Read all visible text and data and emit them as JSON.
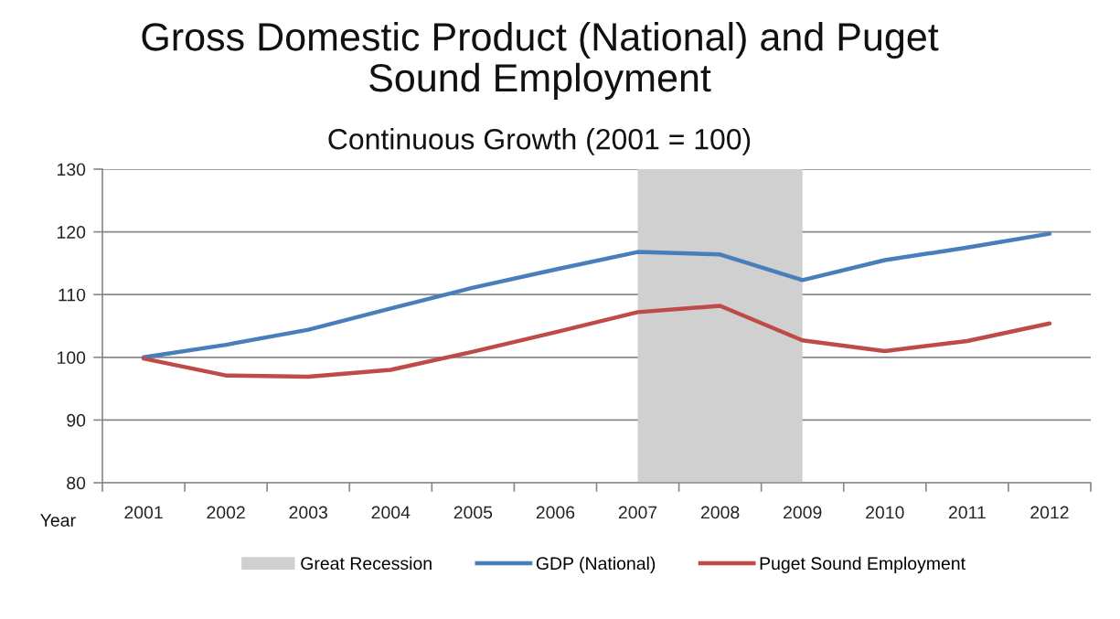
{
  "chart_data": {
    "type": "line",
    "title": "Gross Domestic Product (National) and Puget\nSound Employment",
    "subtitle": "Continuous Growth (2001 = 100)",
    "xlabel": "Year",
    "categories": [
      "2001",
      "2002",
      "2003",
      "2004",
      "2005",
      "2006",
      "2007",
      "2008",
      "2009",
      "2010",
      "2011",
      "2012"
    ],
    "series": [
      {
        "name": "GDP (National)",
        "color": "#4a7ebb",
        "values": [
          100,
          102.0,
          104.4,
          107.8,
          111.1,
          114.0,
          116.8,
          116.4,
          112.3,
          115.5,
          117.5,
          119.7
        ]
      },
      {
        "name": "Puget Sound Employment",
        "color": "#be4b48",
        "values": [
          99.8,
          97.1,
          96.9,
          98.0,
          100.9,
          104.0,
          107.2,
          108.2,
          102.7,
          101.0,
          102.6,
          105.4
        ]
      }
    ],
    "ylim": [
      80,
      130
    ],
    "yticks": [
      80,
      90,
      100,
      110,
      120,
      130
    ],
    "grid": "y",
    "legend": "bottom",
    "marker": "none",
    "line_style": "solid",
    "bands": [
      {
        "axis": "x",
        "from": "2007",
        "to": "2009",
        "label": "Great Recession",
        "color": "#d0d0d0"
      }
    ]
  }
}
